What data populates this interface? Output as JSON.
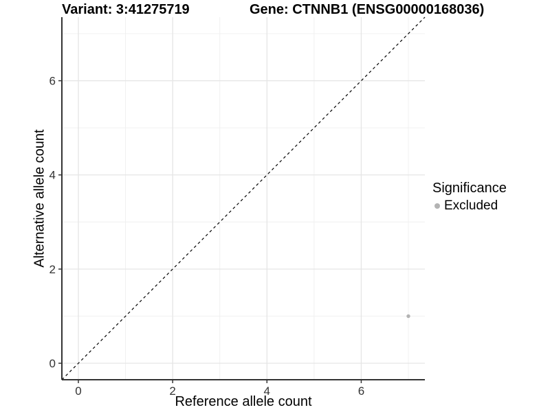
{
  "titles": {
    "variant": "Variant: 3:41275719",
    "gene": "Gene: CTNNB1 (ENSG00000168036)"
  },
  "axes": {
    "x_label": "Reference allele count",
    "y_label": "Alternative allele count"
  },
  "legend": {
    "title": "Significance",
    "items": [
      {
        "label": "Excluded",
        "color": "#b3b3b3"
      }
    ]
  },
  "colors": {
    "background": "#ffffff",
    "grid_major": "#e5e5e5",
    "grid_minor": "#f0f0f0",
    "axis_line": "#333333",
    "tick_label": "#333333",
    "reference_line": "#000000",
    "point": "#b3b3b3"
  },
  "chart_data": {
    "type": "scatter",
    "title": "Variant: 3:41275719   Gene: CTNNB1 (ENSG00000168036)",
    "xlabel": "Reference allele count",
    "ylabel": "Alternative allele count",
    "xlim": [
      -0.35,
      7.35
    ],
    "ylim": [
      -0.35,
      7.35
    ],
    "x_major_ticks": [
      0,
      2,
      4,
      6
    ],
    "x_minor_ticks": [
      1,
      3,
      5,
      7
    ],
    "y_major_ticks": [
      0,
      2,
      4,
      6
    ],
    "y_minor_ticks": [
      1,
      3,
      5,
      7
    ],
    "grid": true,
    "legend_position": "right",
    "series": [
      {
        "name": "Excluded",
        "color": "#b3b3b3",
        "points": [
          {
            "x": 7,
            "y": 1
          }
        ]
      }
    ],
    "reference_line": {
      "type": "identity",
      "slope": 1,
      "intercept": 0,
      "style": "dashed",
      "color": "#000000"
    }
  }
}
